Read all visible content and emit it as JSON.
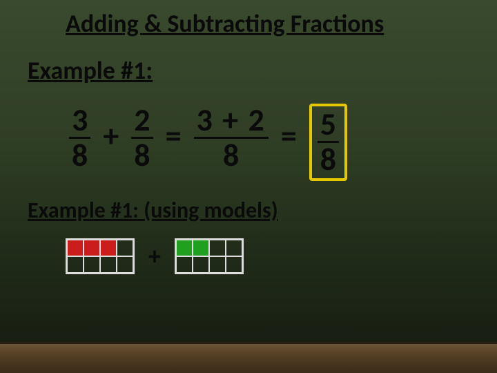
{
  "title": "Adding & Subtracting Fractions",
  "example1_label": "Example #1:",
  "equation": {
    "frac1": {
      "num": "3",
      "den": "8"
    },
    "op1": "+",
    "frac2": {
      "num": "2",
      "den": "8"
    },
    "eq1": "=",
    "middle": {
      "num": "3 + 2",
      "den": "8"
    },
    "eq2": "=",
    "answer": {
      "num": "5",
      "den": "8"
    }
  },
  "models_label": "Example #1: (using models)",
  "models": {
    "grid1": {
      "cols": 4,
      "rows": 2,
      "filled_count": 3,
      "fill_color": "#cc1d1d",
      "empty_color": "transparent",
      "border_color": "#dddddd"
    },
    "op": "+",
    "grid2": {
      "cols": 4,
      "rows": 2,
      "filled_count": 2,
      "fill_color": "#1fa01f",
      "empty_color": "transparent",
      "border_color": "#dddddd"
    }
  },
  "styling": {
    "title_fontsize": 36,
    "equation_fontsize": 46,
    "models_label_fontsize": 32,
    "text_color": "#0a0a0a",
    "answer_box_color": "#e6c800",
    "background_gradient": [
      "#3a4a2e",
      "#2e3d24",
      "#1f2a18",
      "#151a10"
    ],
    "frame_color": "#5a4428"
  }
}
